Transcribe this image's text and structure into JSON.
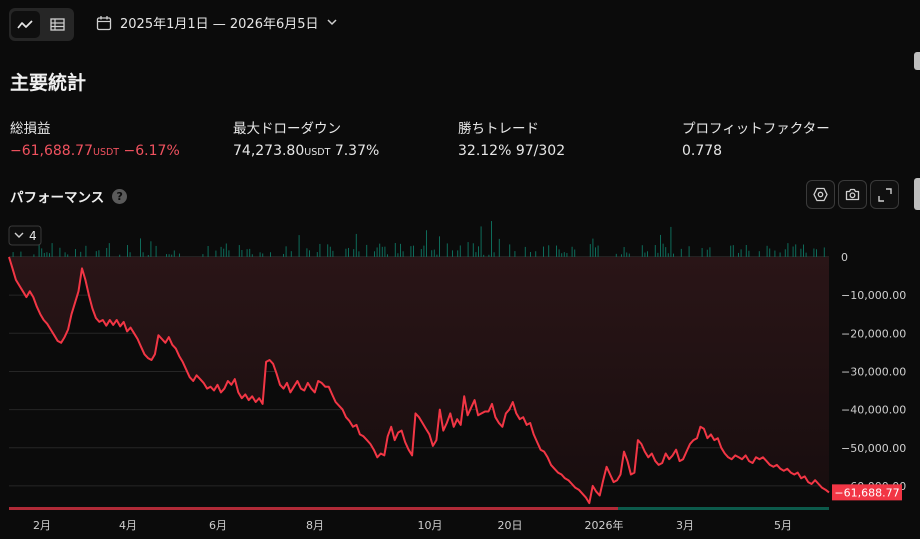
{
  "view_toggle": {
    "line_icon": "line-chart-icon",
    "table_icon": "table-icon"
  },
  "date_range": {
    "label": "2025年1月1日 — 2026年6月5日",
    "icon": "calendar-icon"
  },
  "page_title": "主要統計",
  "metrics": [
    {
      "label": "総損益",
      "value": "−61,688.77",
      "unit": "USDT",
      "extra": "−6.17%"
    },
    {
      "label": "最大ドローダウン",
      "value": "74,273.80",
      "unit": "USDT",
      "extra": "7.37%"
    },
    {
      "label": "勝ちトレード",
      "value": "32.12%",
      "extra": "97/302"
    },
    {
      "label": "プロフィットファクター",
      "value": "0.778"
    }
  ],
  "performance": {
    "title": "パフォーマンス",
    "help": "?",
    "collapse_label": "4"
  },
  "colors": {
    "negative": "#f23645",
    "positive": "#089981",
    "text": "#d9d9d9",
    "background": "#0b0b0b"
  },
  "chart_data": {
    "type": "line",
    "title": "",
    "ylim": [
      -65000,
      0
    ],
    "y_ticks": [
      "0",
      "−10,000.00",
      "−20,000.00",
      "−30,000.00",
      "−40,000.00",
      "−50,000.00",
      "−60,000.00"
    ],
    "x_ticks": [
      "2月",
      "4月",
      "6月",
      "8月",
      "10月",
      "20日",
      "2026年",
      "3月",
      "5月"
    ],
    "last_value_label": "−61,688.77",
    "series": [
      {
        "values": [
          0,
          -3000,
          -6000,
          -7500,
          -9000,
          -10500,
          -9000,
          -10500,
          -13000,
          -15000,
          -16500,
          -17500,
          -19000,
          -20500,
          -22000,
          -22500,
          -21000,
          -19000,
          -15000,
          -12000,
          -9000,
          -3000,
          -6000,
          -10000,
          -13500,
          -16000,
          -17000,
          -16500,
          -18000,
          -16500,
          -17800,
          -16500,
          -18200,
          -17000,
          -19500,
          -18500,
          -20000,
          -21500,
          -23500,
          -25500,
          -26500,
          -27000,
          -25500,
          -20500,
          -21500,
          -22500,
          -21000,
          -23000,
          -24000,
          -26000,
          -27500,
          -29500,
          -31500,
          -32500,
          -31000,
          -32000,
          -33000,
          -34500,
          -34000,
          -35000,
          -33500,
          -35500,
          -34500,
          -32500,
          -33500,
          -32000,
          -35500,
          -37000,
          -36000,
          -37500,
          -36500,
          -38000,
          -37000,
          -38500,
          -27500,
          -27000,
          -28000,
          -30500,
          -33500,
          -34500,
          -33000,
          -35500,
          -34000,
          -32500,
          -34500,
          -35000,
          -33000,
          -34500,
          -35500,
          -32500,
          -33000,
          -34000,
          -34000,
          -36000,
          -38000,
          -39000,
          -40000,
          -42000,
          -43000,
          -44500,
          -44000,
          -46500,
          -47000,
          -48000,
          -49000,
          -50500,
          -52500,
          -51500,
          -52000,
          -47000,
          -44500,
          -48000,
          -46000,
          -45500,
          -48500,
          -50500,
          -52000,
          -41000,
          -42000,
          -43500,
          -45000,
          -46500,
          -49500,
          -48000,
          -40000,
          -45500,
          -43500,
          -41000,
          -44500,
          -42500,
          -44000,
          -36500,
          -41500,
          -39500,
          -37500,
          -41500,
          -41000,
          -40500,
          -40500,
          -38500,
          -42000,
          -43500,
          -44500,
          -41000,
          -40000,
          -38000,
          -41000,
          -42500,
          -42000,
          -44000,
          -43500,
          -46500,
          -48500,
          -50500,
          -51000,
          -52500,
          -54500,
          -55500,
          -56500,
          -57000,
          -58000,
          -58500,
          -59500,
          -60500,
          -61000,
          -62000,
          -63000,
          -64500,
          -60000,
          -61500,
          -62500,
          -58500,
          -55000,
          -57000,
          -59000,
          -58500,
          -57000,
          -51000,
          -53500,
          -57000,
          -56500,
          -48000,
          -49000,
          -51000,
          -52500,
          -51500,
          -53500,
          -54500,
          -54000,
          -51500,
          -53000,
          -52000,
          -50500,
          -53500,
          -53000,
          -51000,
          -49000,
          -48000,
          -47500,
          -44500,
          -45000,
          -47500,
          -46500,
          -48000,
          -47500,
          -50000,
          -51500,
          -52500,
          -53000,
          -52000,
          -52500,
          -53000,
          -52000,
          -53500,
          -54000,
          -52500,
          -53000,
          -52500,
          -53500,
          -54500,
          -55000,
          -54500,
          -55500,
          -56000,
          -55500,
          -56500,
          -57000,
          -56500,
          -58000,
          -57500,
          -59000,
          -59500,
          -58500,
          -59500,
          -60500,
          -61000,
          -61688.77
        ]
      }
    ]
  }
}
